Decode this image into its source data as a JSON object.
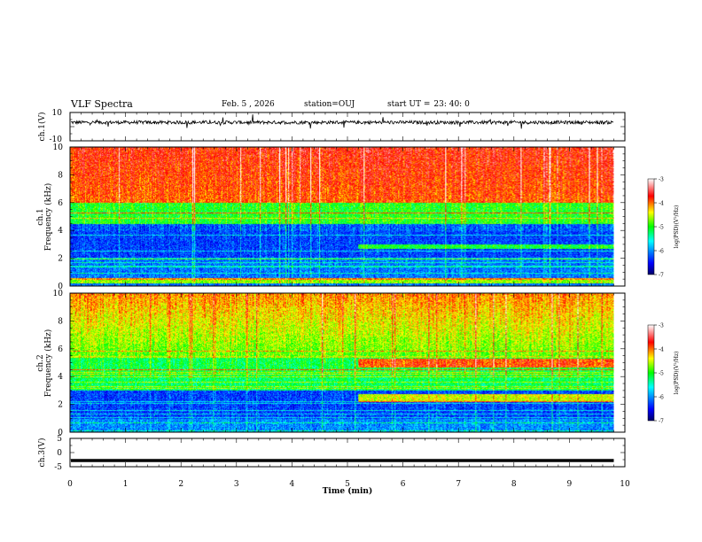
{
  "header": {
    "title": "VLF Spectra",
    "date": "Feb. 5 , 2026",
    "station_label": "station=",
    "station": "OUJ",
    "start_label": "start UT =",
    "start_time": "23: 40: 0"
  },
  "chart_data": [
    {
      "type": "line",
      "panel": "ch1-waveform",
      "ylabel": "ch.1(V)",
      "ylim": [
        -10,
        10
      ],
      "yticks": [
        "10",
        "-10"
      ],
      "xlim": [
        0,
        10
      ],
      "series": [
        {
          "baseline": 3,
          "typical_amplitude": 1.5,
          "color": "#000000"
        }
      ]
    },
    {
      "type": "heatmap",
      "panel": "ch1-spectrogram",
      "ylabel": "ch.1 Frequency (kHz)",
      "ylabel_line1": "ch.1",
      "ylabel_line2": "Frequency (kHz)",
      "ylim": [
        0,
        10
      ],
      "yticks": [
        "0",
        "2",
        "4",
        "6",
        "8",
        "10"
      ],
      "xlim": [
        0,
        10
      ],
      "colorbar": {
        "label": "log(PSD)(V²/Hz)",
        "range": [
          -7,
          -3
        ],
        "ticks": [
          "-3",
          "-4",
          "-5",
          "-6",
          "-7"
        ]
      }
    },
    {
      "type": "heatmap",
      "panel": "ch2-spectrogram",
      "ylabel": "ch.2 Frequency (kHz)",
      "ylabel_line1": "ch.2",
      "ylabel_line2": "Frequency (kHz)",
      "ylim": [
        0,
        10
      ],
      "yticks": [
        "0",
        "2",
        "4",
        "6",
        "8",
        "10"
      ],
      "xlim": [
        0,
        10
      ],
      "colorbar": {
        "label": "log(PSD)(V²/Hz)",
        "range": [
          -7,
          -3
        ],
        "ticks": [
          "-3",
          "-4",
          "-5",
          "-6",
          "-7"
        ]
      }
    },
    {
      "type": "line",
      "panel": "ch3-waveform",
      "ylabel": "ch.3(V)",
      "ylim": [
        -5,
        5
      ],
      "yticks": [
        "5",
        "0",
        "-5"
      ],
      "xlim": [
        0,
        10
      ],
      "series": [
        {
          "constant": -2.8,
          "color": "#000000"
        }
      ]
    }
  ],
  "xaxis": {
    "label": "Time (min)",
    "ticks": [
      "0",
      "1",
      "2",
      "3",
      "4",
      "5",
      "6",
      "7",
      "8",
      "9",
      "10"
    ],
    "data_end": 9.8
  }
}
